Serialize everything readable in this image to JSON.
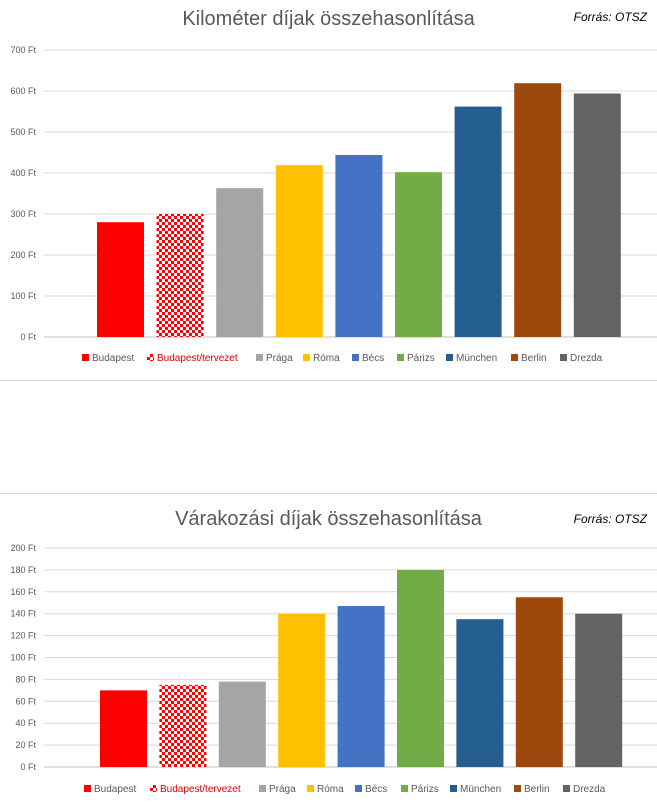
{
  "chart_data": [
    {
      "type": "bar",
      "title": "Kilométer díjak összehasonlítása",
      "source": "Forrás: OTSZ",
      "categories": [
        "Budapest",
        "Budapest/tervezet",
        "Prága",
        "Róma",
        "Bécs",
        "Párizs",
        "München",
        "Berlin",
        "Drezda"
      ],
      "values": [
        280,
        300,
        363,
        419,
        444,
        402,
        562,
        619,
        594
      ],
      "colors": [
        "#ff0000",
        "checker-red",
        "#a5a5a5",
        "#ffc000",
        "#4472c4",
        "#70ad47",
        "#255e91",
        "#9e480e",
        "#636363"
      ],
      "yticks": [
        "0 Ft",
        "100 Ft",
        "200 Ft",
        "300 Ft",
        "400 Ft",
        "500 Ft",
        "600 Ft",
        "700 Ft"
      ],
      "ylim": [
        0,
        700
      ],
      "ystep": 100,
      "grid": true,
      "legend": "bottom"
    },
    {
      "type": "bar",
      "title": "Várakozási díjak összehasonlítása",
      "source": "Forrás: OTSZ",
      "categories": [
        "Budapest",
        "Budapest/tervezet",
        "Prága",
        "Róma",
        "Bécs",
        "Párizs",
        "München",
        "Berlin",
        "Drezda"
      ],
      "values": [
        70,
        75,
        78,
        140,
        147,
        180,
        135,
        155,
        140
      ],
      "colors": [
        "#ff0000",
        "checker-red",
        "#a5a5a5",
        "#ffc000",
        "#4472c4",
        "#70ad47",
        "#255e91",
        "#9e480e",
        "#636363"
      ],
      "yticks": [
        "0 Ft",
        "20 Ft",
        "40 Ft",
        "60 Ft",
        "80 Ft",
        "100 Ft",
        "120 Ft",
        "140 Ft",
        "160 Ft",
        "180 Ft",
        "200 Ft"
      ],
      "ylim": [
        0,
        200
      ],
      "ystep": 20,
      "grid": true,
      "legend": "bottom"
    }
  ]
}
